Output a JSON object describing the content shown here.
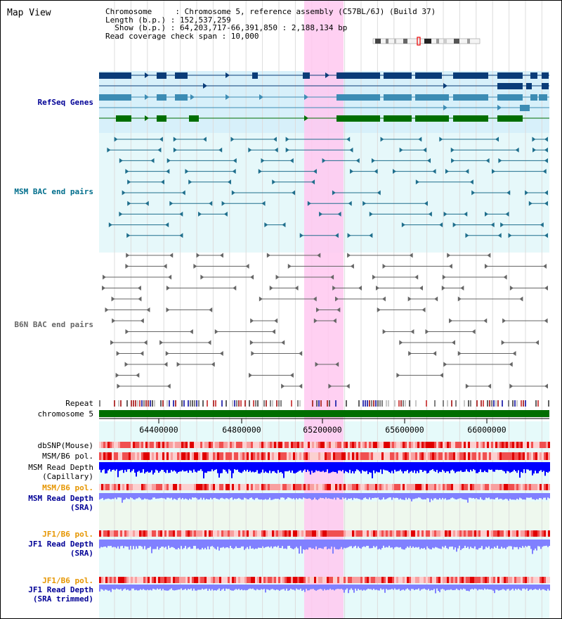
{
  "title": "Map View",
  "header": {
    "line1": "Chromosome     : Chromosome 5, reference assembly (C57BL/6J) (Build 37)",
    "line2": "Length (b.p.) : 152,537,259",
    "line3": "  Show (b.p.) : 64,203,717-66,391,850 : 2,188,134 bp",
    "line4": "Read coverage check span : 10,000"
  },
  "tracks": {
    "refseq": "RefSeq Genes",
    "msm_bac": "MSM BAC end pairs",
    "b6n_bac": "B6N BAC end pairs",
    "repeat": "Repeat",
    "chromosome": "chromosome 5",
    "dbsnp": "dbSNP(Mouse)",
    "msm_pol_1": "MSM/B6 pol.",
    "msm_depth_cap_1": "MSM Read Depth",
    "msm_depth_cap_2": "(Capillary)",
    "msm_pol_2": "MSM/B6 pol.",
    "msm_depth_sra_1": "MSM Read Depth",
    "msm_depth_sra_2": "(SRA)",
    "jf1_pol_1": "JF1/B6 pol.",
    "jf1_depth_1": "JF1 Read Depth",
    "jf1_depth_2": "(SRA)",
    "jf1_pol_2": "JF1/B6 pol.",
    "jf1_trim_1": "JF1 Read Depth",
    "jf1_trim_2": "(SRA trimmed)"
  },
  "axis": {
    "ticks": [
      "64400000",
      "64800000",
      "65200000",
      "65600000",
      "66000000"
    ]
  },
  "colors": {
    "refseq_dark": "#0a3c78",
    "refseq_mid": "#3c8cb4",
    "refseq_green": "#006e00",
    "msm_line": "#1e6e8c",
    "b6n_line": "#666666",
    "highlight": "#ffc8f0",
    "depth_blue": "#0000ff",
    "depth_light": "#8080ff",
    "label_blue": "#000096",
    "label_orange": "#e69600",
    "label_teal": "#006e8c"
  }
}
